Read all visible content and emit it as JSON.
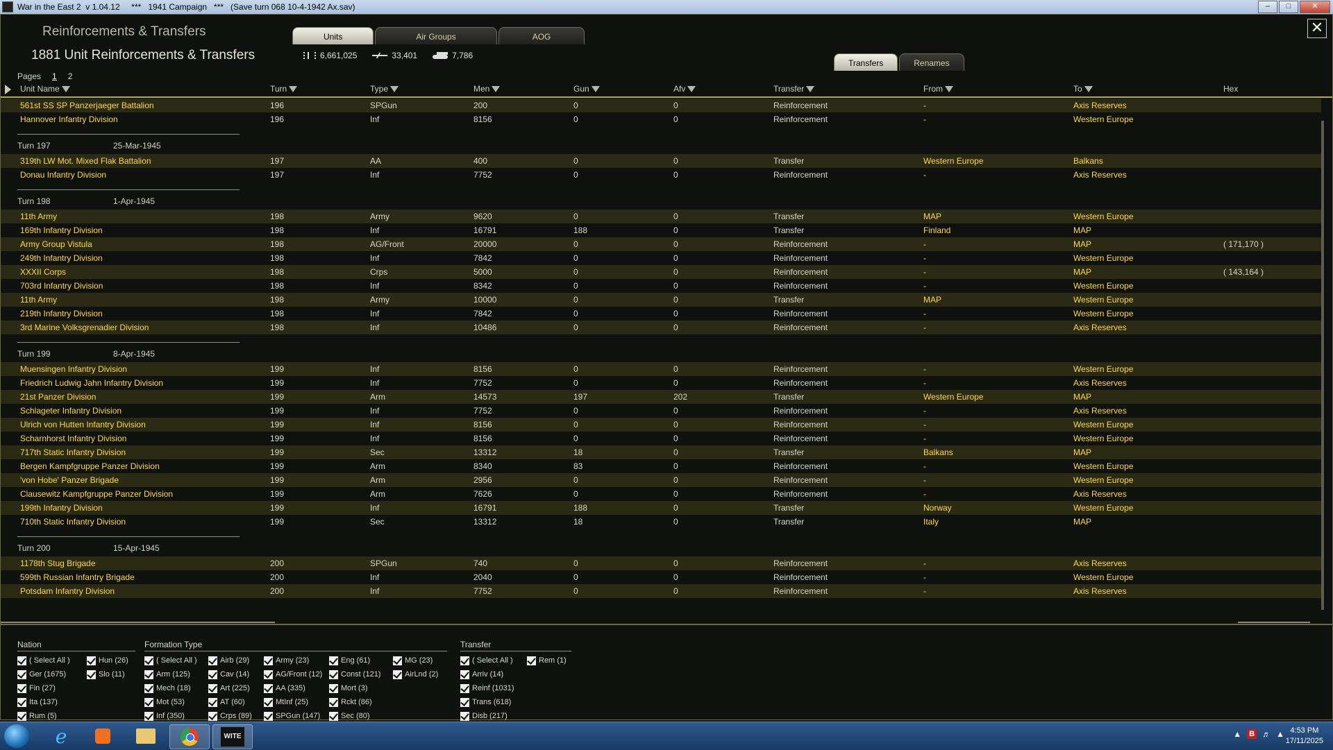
{
  "window": {
    "title": "War in the East 2  v 1.04.12     ***   1941 Campaign   ***   (Save turn 068 10-4-1942 Ax.sav)",
    "min": "–",
    "max": "□",
    "close": "✕"
  },
  "panel": {
    "title": "Reinforcements & Transfers",
    "subtitle": "1881 Unit Reinforcements & Transfers",
    "close_glyph": "✕"
  },
  "tabs": [
    "Units",
    "Air Groups",
    "AOG"
  ],
  "subtabs": [
    "Transfers",
    "Renames"
  ],
  "stats": {
    "men": "6,661,025",
    "aircraft": "33,401",
    "afv": "7,786"
  },
  "pages": {
    "label": "Pages",
    "items": [
      "1",
      "2"
    ]
  },
  "columns": {
    "name": "Unit Name",
    "turn": "Turn",
    "type": "Type",
    "men": "Men",
    "gun": "Gun",
    "afv": "Afv",
    "transfer": "Transfer",
    "from": "From",
    "to": "To",
    "hex": "Hex"
  },
  "groups": [
    {
      "turn": "",
      "date": "",
      "rows": [
        [
          "561st SS SP Panzerjaeger Battalion",
          "196",
          "SPGun",
          "200",
          "0",
          "0",
          "Reinforcement",
          "-",
          "Axis Reserves",
          ""
        ],
        [
          "Hannover Infantry Division",
          "196",
          "Inf",
          "8156",
          "0",
          "0",
          "Reinforcement",
          "-",
          "Western Europe",
          ""
        ]
      ]
    },
    {
      "turn": "Turn 197",
      "date": "25-Mar-1945",
      "rows": [
        [
          "319th LW Mot. Mixed Flak Battalion",
          "197",
          "AA",
          "400",
          "0",
          "0",
          "Transfer",
          "Western Europe",
          "Balkans",
          ""
        ],
        [
          "Donau Infantry Division",
          "197",
          "Inf",
          "7752",
          "0",
          "0",
          "Reinforcement",
          "-",
          "Axis Reserves",
          ""
        ]
      ]
    },
    {
      "turn": "Turn 198",
      "date": "1-Apr-1945",
      "rows": [
        [
          "11th Army",
          "198",
          "Army",
          "9620",
          "0",
          "0",
          "Transfer",
          "MAP",
          "Western Europe",
          ""
        ],
        [
          "169th Infantry Division",
          "198",
          "Inf",
          "16791",
          "188",
          "0",
          "Transfer",
          "Finland",
          "MAP",
          ""
        ],
        [
          "Army Group Vistula",
          "198",
          "AG/Front",
          "20000",
          "0",
          "0",
          "Reinforcement",
          "-",
          "MAP",
          "( 171,170 )"
        ],
        [
          "249th Infantry Division",
          "198",
          "Inf",
          "7842",
          "0",
          "0",
          "Reinforcement",
          "-",
          "Western Europe",
          ""
        ],
        [
          "XXXII Corps",
          "198",
          "Crps",
          "5000",
          "0",
          "0",
          "Reinforcement",
          "-",
          "MAP",
          "( 143,164 )"
        ],
        [
          "703rd Infantry Division",
          "198",
          "Inf",
          "8342",
          "0",
          "0",
          "Reinforcement",
          "-",
          "Western Europe",
          ""
        ],
        [
          "11th Army",
          "198",
          "Army",
          "10000",
          "0",
          "0",
          "Transfer",
          "MAP",
          "Western Europe",
          ""
        ],
        [
          "219th Infantry Division",
          "198",
          "Inf",
          "7842",
          "0",
          "0",
          "Reinforcement",
          "-",
          "Western Europe",
          ""
        ],
        [
          "3rd Marine Volksgrenadier Division",
          "198",
          "Inf",
          "10486",
          "0",
          "0",
          "Reinforcement",
          "-",
          "Axis Reserves",
          ""
        ]
      ]
    },
    {
      "turn": "Turn 199",
      "date": "8-Apr-1945",
      "rows": [
        [
          "Muensingen Infantry Division",
          "199",
          "Inf",
          "8156",
          "0",
          "0",
          "Reinforcement",
          "-",
          "Western Europe",
          ""
        ],
        [
          "Friedrich Ludwig Jahn Infantry Division",
          "199",
          "Inf",
          "7752",
          "0",
          "0",
          "Reinforcement",
          "-",
          "Axis Reserves",
          ""
        ],
        [
          "21st Panzer Division",
          "199",
          "Arm",
          "14573",
          "197",
          "202",
          "Transfer",
          "Western Europe",
          "MAP",
          ""
        ],
        [
          "Schlageter Infantry Division",
          "199",
          "Inf",
          "7752",
          "0",
          "0",
          "Reinforcement",
          "-",
          "Axis Reserves",
          ""
        ],
        [
          "Ulrich von Hutten Infantry Division",
          "199",
          "Inf",
          "8156",
          "0",
          "0",
          "Reinforcement",
          "-",
          "Western Europe",
          ""
        ],
        [
          "Scharnhorst Infantry Division",
          "199",
          "Inf",
          "8156",
          "0",
          "0",
          "Reinforcement",
          "-",
          "Western Europe",
          ""
        ],
        [
          "717th Static Infantry Division",
          "199",
          "Sec",
          "13312",
          "18",
          "0",
          "Transfer",
          "Balkans",
          "MAP",
          ""
        ],
        [
          "Bergen Kampfgruppe Panzer Division",
          "199",
          "Arm",
          "8340",
          "83",
          "0",
          "Reinforcement",
          "-",
          "Western Europe",
          ""
        ],
        [
          "'von Hobe' Panzer Brigade",
          "199",
          "Arm",
          "2956",
          "0",
          "0",
          "Reinforcement",
          "-",
          "Western Europe",
          ""
        ],
        [
          "Clausewitz Kampfgruppe Panzer Division",
          "199",
          "Arm",
          "7626",
          "0",
          "0",
          "Reinforcement",
          "-",
          "Axis Reserves",
          ""
        ],
        [
          "199th Infantry Division",
          "199",
          "Inf",
          "16791",
          "188",
          "0",
          "Transfer",
          "Norway",
          "Western Europe",
          ""
        ],
        [
          "710th Static Infantry Division",
          "199",
          "Sec",
          "13312",
          "18",
          "0",
          "Transfer",
          "Italy",
          "MAP",
          ""
        ]
      ]
    },
    {
      "turn": "Turn 200",
      "date": "15-Apr-1945",
      "rows": [
        [
          "1178th Stug Brigade",
          "200",
          "SPGun",
          "740",
          "0",
          "0",
          "Reinforcement",
          "-",
          "Axis Reserves",
          ""
        ],
        [
          "599th Russian Infantry Brigade",
          "200",
          "Inf",
          "2040",
          "0",
          "0",
          "Reinforcement",
          "-",
          "Western Europe",
          ""
        ],
        [
          "Potsdam Infantry Division",
          "200",
          "Inf",
          "7752",
          "0",
          "0",
          "Reinforcement",
          "-",
          "Axis Reserves",
          ""
        ]
      ]
    }
  ],
  "filters": {
    "nation": {
      "label": "Nation",
      "cols": [
        [
          "( Select All )",
          "Ger (1675)",
          "Fin (27)",
          "Ita (137)",
          "Rum (5)"
        ],
        [
          "Hun (26)",
          "Slo (11)"
        ]
      ]
    },
    "formation": {
      "label": "Formation Type",
      "cols": [
        [
          "( Select All )",
          "Arm (125)",
          "Mech (18)",
          "Mot (53)",
          "Inf (350)"
        ],
        [
          "Airb (29)",
          "Cav (14)",
          "Art (225)",
          "AT (60)",
          "Crps (89)"
        ],
        [
          "Army (23)",
          "AG/Front (12)",
          "AA (335)",
          "MtInf (25)",
          "SPGun (147)"
        ],
        [
          "Eng (61)",
          "Const (121)",
          "Mort (3)",
          "Rckt (86)",
          "Sec (80)"
        ],
        [
          "MG (23)",
          "AirLnd (2)"
        ]
      ]
    },
    "transfer": {
      "label": "Transfer",
      "cols": [
        [
          "( Select All )",
          "Arriv (14)",
          "Reinf (1031)",
          "Trans (618)",
          "Disb (217)"
        ],
        [
          "Rem (1)"
        ]
      ]
    }
  },
  "taskbar": {
    "wite_label": "WITE",
    "tray_badge": "B",
    "time": "4:53 PM",
    "date": "17/11/2025",
    "tray_up": "▲"
  }
}
